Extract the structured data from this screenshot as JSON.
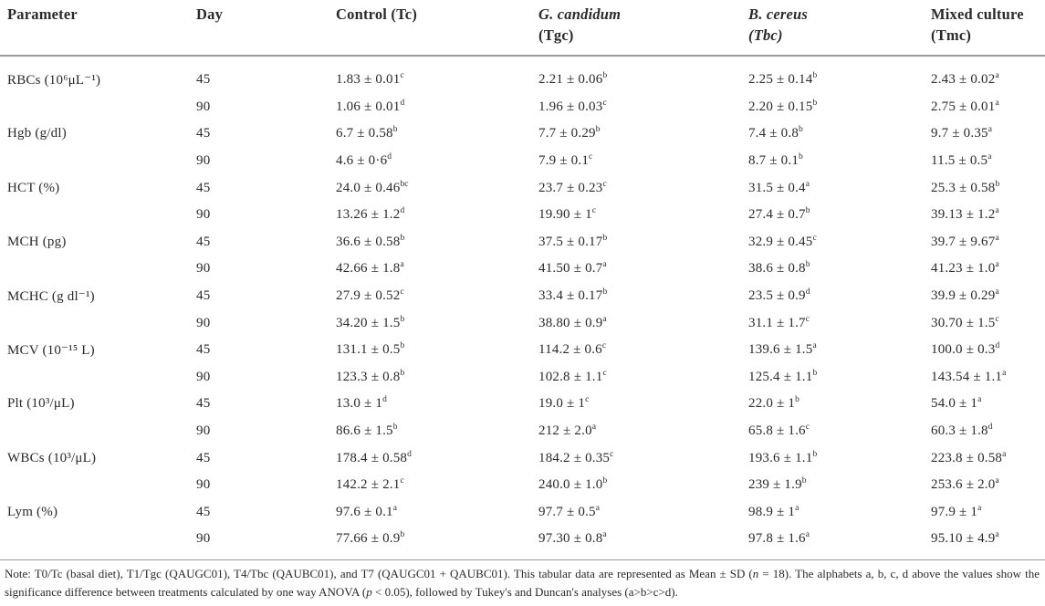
{
  "colors": {
    "background": "#ffffff",
    "text": "#2a2a2a",
    "rule": "#9b9b9b"
  },
  "table": {
    "columns": [
      {
        "lines": [
          {
            "t": "Parameter",
            "i": false
          }
        ]
      },
      {
        "lines": [
          {
            "t": "Day",
            "i": false
          }
        ]
      },
      {
        "lines": [
          {
            "t": "Control (Tc)",
            "i": false
          }
        ]
      },
      {
        "lines": [
          {
            "t": "G. candidum",
            "i": true
          },
          {
            "t": "(Tgc)",
            "i": false
          }
        ]
      },
      {
        "lines": [
          {
            "t": "B. cereus",
            "i": true
          },
          {
            "t": "(Tbc)",
            "i": true
          }
        ]
      },
      {
        "lines": [
          {
            "t": "Mixed culture",
            "i": false
          },
          {
            "t": "(Tmc)",
            "i": false
          }
        ]
      }
    ],
    "treatments": [
      "Tc",
      "Tgc",
      "Tbc",
      "Tmc"
    ],
    "rows": [
      {
        "parameter": "RBCs (10⁶μL⁻¹)",
        "days": [
          {
            "day": "45",
            "values": [
              {
                "v": "1.83 ± 0.01",
                "s": "c"
              },
              {
                "v": "2.21 ± 0.06",
                "s": "b"
              },
              {
                "v": "2.25 ± 0.14",
                "s": "b"
              },
              {
                "v": "2.43 ± 0.02",
                "s": "a"
              }
            ]
          },
          {
            "day": "90",
            "values": [
              {
                "v": "1.06 ± 0.01",
                "s": "d"
              },
              {
                "v": "1.96 ± 0.03",
                "s": "c"
              },
              {
                "v": "2.20 ± 0.15",
                "s": "b"
              },
              {
                "v": "2.75 ± 0.01",
                "s": "a"
              }
            ]
          }
        ]
      },
      {
        "parameter": "Hgb (g/dl)",
        "days": [
          {
            "day": "45",
            "values": [
              {
                "v": "6.7 ± 0.58",
                "s": "b"
              },
              {
                "v": "7.7 ± 0.29",
                "s": "b"
              },
              {
                "v": "7.4 ± 0.8",
                "s": "b"
              },
              {
                "v": "9.7 ± 0.35",
                "s": "a"
              }
            ]
          },
          {
            "day": "90",
            "values": [
              {
                "v": "4.6 ± 0·6",
                "s": "d"
              },
              {
                "v": "7.9 ± 0.1",
                "s": "c"
              },
              {
                "v": "8.7 ± 0.1",
                "s": "b"
              },
              {
                "v": "11.5 ± 0.5",
                "s": "a"
              }
            ]
          }
        ]
      },
      {
        "parameter": "HCT (%)",
        "days": [
          {
            "day": "45",
            "values": [
              {
                "v": "24.0 ± 0.46",
                "s": "bc"
              },
              {
                "v": "23.7 ± 0.23",
                "s": "c"
              },
              {
                "v": "31.5 ± 0.4",
                "s": "a"
              },
              {
                "v": "25.3 ± 0.58",
                "s": "b"
              }
            ]
          },
          {
            "day": "90",
            "values": [
              {
                "v": "13.26 ± 1.2",
                "s": "d"
              },
              {
                "v": "19.90 ± 1",
                "s": "c"
              },
              {
                "v": "27.4 ± 0.7",
                "s": "b"
              },
              {
                "v": "39.13 ± 1.2",
                "s": "a"
              }
            ]
          }
        ]
      },
      {
        "parameter": "MCH (pg)",
        "days": [
          {
            "day": "45",
            "values": [
              {
                "v": "36.6 ± 0.58",
                "s": "b"
              },
              {
                "v": "37.5 ± 0.17",
                "s": "b"
              },
              {
                "v": "32.9 ± 0.45",
                "s": "c"
              },
              {
                "v": "39.7 ± 9.67",
                "s": "a"
              }
            ]
          },
          {
            "day": "90",
            "values": [
              {
                "v": "42.66 ± 1.8",
                "s": "a"
              },
              {
                "v": "41.50 ± 0.7",
                "s": "a"
              },
              {
                "v": "38.6 ± 0.8",
                "s": "b"
              },
              {
                "v": "41.23 ± 1.0",
                "s": "a"
              }
            ]
          }
        ]
      },
      {
        "parameter": "MCHC (g dl⁻¹)",
        "days": [
          {
            "day": "45",
            "values": [
              {
                "v": "27.9 ± 0.52",
                "s": "c"
              },
              {
                "v": "33.4 ± 0.17",
                "s": "b"
              },
              {
                "v": "23.5 ± 0.9",
                "s": "d"
              },
              {
                "v": "39.9 ± 0.29",
                "s": "a"
              }
            ]
          },
          {
            "day": "90",
            "values": [
              {
                "v": "34.20 ± 1.5",
                "s": "b"
              },
              {
                "v": "38.80 ± 0.9",
                "s": "a"
              },
              {
                "v": "31.1 ± 1.7",
                "s": "c"
              },
              {
                "v": "30.70 ± 1.5",
                "s": "c"
              }
            ]
          }
        ]
      },
      {
        "parameter": "MCV (10⁻¹⁵ L)",
        "days": [
          {
            "day": "45",
            "values": [
              {
                "v": "131.1 ± 0.5",
                "s": "b"
              },
              {
                "v": "114.2 ± 0.6",
                "s": "c"
              },
              {
                "v": "139.6 ± 1.5",
                "s": "a"
              },
              {
                "v": "100.0 ± 0.3",
                "s": "d"
              }
            ]
          },
          {
            "day": "90",
            "values": [
              {
                "v": "123.3 ± 0.8",
                "s": "b"
              },
              {
                "v": "102.8 ± 1.1",
                "s": "c"
              },
              {
                "v": "125.4 ± 1.1",
                "s": "b"
              },
              {
                "v": "143.54 ± 1.1",
                "s": "a"
              }
            ]
          }
        ]
      },
      {
        "parameter": "Plt (10³/μL)",
        "days": [
          {
            "day": "45",
            "values": [
              {
                "v": "13.0 ± 1",
                "s": "d"
              },
              {
                "v": "19.0 ± 1",
                "s": "c"
              },
              {
                "v": "22.0 ± 1",
                "s": "b"
              },
              {
                "v": "54.0 ± 1",
                "s": "a"
              }
            ]
          },
          {
            "day": "90",
            "values": [
              {
                "v": "86.6 ± 1.5",
                "s": "b"
              },
              {
                "v": "212 ± 2.0",
                "s": "a"
              },
              {
                "v": "65.8 ± 1.6",
                "s": "c"
              },
              {
                "v": "60.3 ± 1.8",
                "s": "d"
              }
            ]
          }
        ]
      },
      {
        "parameter": "WBCs (10³/μL)",
        "days": [
          {
            "day": "45",
            "values": [
              {
                "v": "178.4 ± 0.58",
                "s": "d"
              },
              {
                "v": "184.2 ± 0.35",
                "s": "c"
              },
              {
                "v": "193.6 ± 1.1",
                "s": "b"
              },
              {
                "v": "223.8 ± 0.58",
                "s": "a"
              }
            ]
          },
          {
            "day": "90",
            "values": [
              {
                "v": "142.2 ± 2.1",
                "s": "c"
              },
              {
                "v": "240.0 ± 1.0",
                "s": "b"
              },
              {
                "v": "239 ± 1.9",
                "s": "b"
              },
              {
                "v": "253.6 ± 2.0",
                "s": "a"
              }
            ]
          }
        ]
      },
      {
        "parameter": "Lym (%)",
        "days": [
          {
            "day": "45",
            "values": [
              {
                "v": "97.6 ± 0.1",
                "s": "a"
              },
              {
                "v": "97.7 ± 0.5",
                "s": "a"
              },
              {
                "v": "98.9 ± 1",
                "s": "a"
              },
              {
                "v": "97.9 ± 1",
                "s": "a"
              }
            ]
          },
          {
            "day": "90",
            "values": [
              {
                "v": "77.66 ± 0.9",
                "s": "b"
              },
              {
                "v": "97.30 ± 0.8",
                "s": "a"
              },
              {
                "v": "97.8 ± 1.6",
                "s": "a"
              },
              {
                "v": "95.10 ± 4.9",
                "s": "a"
              }
            ]
          }
        ]
      }
    ],
    "note_segments": [
      {
        "t": "Note: T0/Tc (basal diet), T1/Tgc (QAUGC01), T4/Tbc (QAUBC01), and T7 (QAUGC01 + QAUBC01). This tabular data are represented as Mean ± SD (",
        "i": false
      },
      {
        "t": "n",
        "i": true
      },
      {
        "t": " = 18). The alphabets a, b, c, d above the values show the significance difference between treatments calculated by one way ANOVA (",
        "i": false
      },
      {
        "t": "p",
        "i": true
      },
      {
        "t": " < 0.05), followed by Tukey's and Duncan's analyses (a>b>c>d).",
        "i": false
      }
    ]
  }
}
